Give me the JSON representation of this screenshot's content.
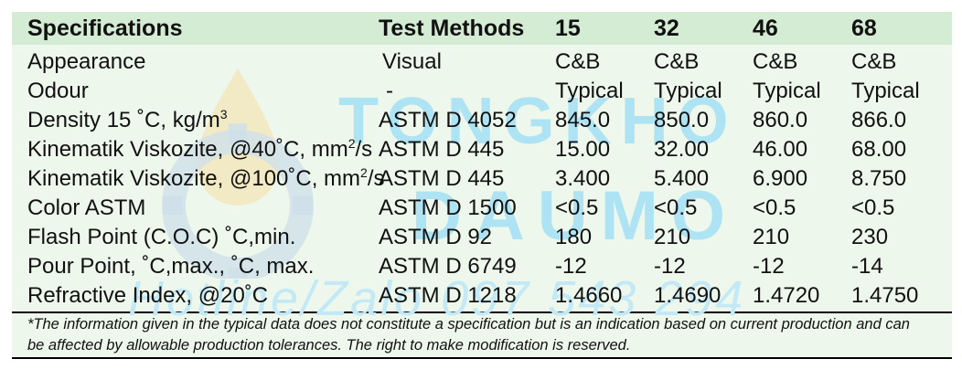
{
  "table": {
    "headers": {
      "spec": "Specifications",
      "method": "Test Methods",
      "g15": "15",
      "g32": "32",
      "g46": "46",
      "g68": "68"
    },
    "rows": [
      {
        "spec": "Appearance",
        "method": "Visual",
        "g15": "C&B",
        "g32": "C&B",
        "g46": "C&B",
        "g68": "C&B"
      },
      {
        "spec": "Odour",
        "method": "-",
        "g15": "Typical",
        "g32": "Typical",
        "g46": "Typical",
        "g68": "Typical"
      },
      {
        "spec_main": "Density 15 ˚C, kg/m",
        "spec_sup": "3",
        "method": "ASTM D 4052",
        "g15": "845.0",
        "g32": "850.0",
        "g46": "860.0",
        "g68": "866.0"
      },
      {
        "spec_main": "Kinematik Viskozite, @40˚C, mm",
        "spec_sup": "2",
        "spec_tail": "/s",
        "method": "ASTM D 445",
        "g15": "15.00",
        "g32": "32.00",
        "g46": "46.00",
        "g68": "68.00"
      },
      {
        "spec_main": "Kinematik Viskozite, @100˚C, mm",
        "spec_sup": "2",
        "spec_tail": "/s",
        "method": "ASTM D 445",
        "g15": "3.400",
        "g32": "5.400",
        "g46": "6.900",
        "g68": "8.750"
      },
      {
        "spec": "Color ASTM",
        "method": "ASTM D 1500",
        "g15": "<0.5",
        "g32": "<0.5",
        "g46": "<0.5",
        "g68": "<0.5"
      },
      {
        "spec": "Flash Point (C.O.C) ˚C,min.",
        "method": "ASTM D 92",
        "g15": "180",
        "g32": "210",
        "g46": "210",
        "g68": "230"
      },
      {
        "spec": "Pour Point, ˚C,max., ˚C, max.",
        "method": "ASTM D 6749",
        "g15": "-12",
        "g32": "-12",
        "g46": "-12",
        "g68": "-14"
      },
      {
        "spec": "Refractive Index, @20˚C",
        "method": "ASTM D 1218",
        "g15": "1.4660",
        "g32": "1.4690",
        "g46": "1.4720",
        "g68": "1.4750"
      }
    ]
  },
  "footnote": {
    "line1": "*The information given in the typical data does not constitute a specification but is an indication based on current production and can",
    "line2": "be affected by allowable production tolerances. The right to make modification is reserved."
  },
  "watermark": {
    "line1": "TONGKHO",
    "line2": "DAUMO",
    "line3": "Hotline/Zalo 097 543 294"
  },
  "colors": {
    "header_band": "#d4ecd3",
    "body_bg": "#eef7ec",
    "watermark": "#aee3f4"
  }
}
